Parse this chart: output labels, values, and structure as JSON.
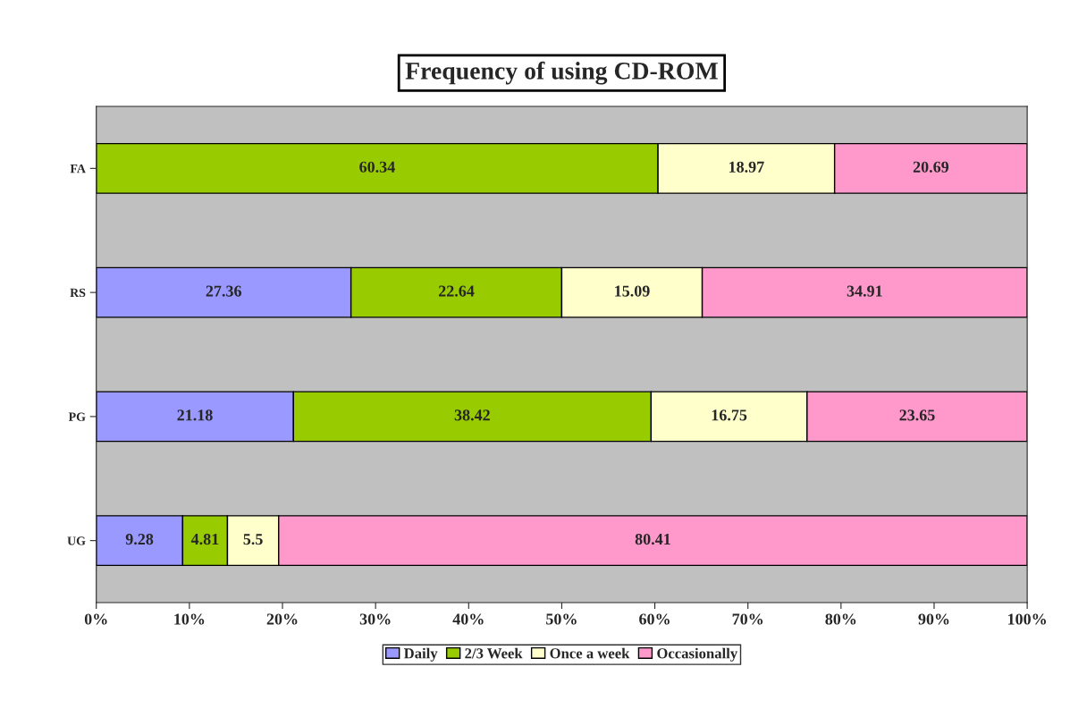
{
  "chart_data": {
    "type": "bar",
    "orientation": "horizontal",
    "stacked": true,
    "title": "Frequency of using CD-ROM",
    "categories": [
      "FA",
      "RS",
      "PG",
      "UG"
    ],
    "series": [
      {
        "name": "Daily",
        "color": "#9999ff",
        "values": [
          null,
          27.36,
          21.18,
          9.28
        ]
      },
      {
        "name": "2/3 Week",
        "color": "#99cc00",
        "values": [
          60.34,
          22.64,
          38.42,
          4.81
        ]
      },
      {
        "name": "Once a week",
        "color": "#ffffcc",
        "values": [
          18.97,
          15.09,
          16.75,
          5.5
        ]
      },
      {
        "name": "Occasionally",
        "color": "#ff99cc",
        "values": [
          20.69,
          34.91,
          23.65,
          80.41
        ]
      }
    ],
    "xlim": [
      0,
      100
    ],
    "xticks": [
      {
        "value": 0,
        "label": "0%"
      },
      {
        "value": 10,
        "label": "10%"
      },
      {
        "value": 20,
        "label": "20%"
      },
      {
        "value": 30,
        "label": "30%"
      },
      {
        "value": 40,
        "label": "40%"
      },
      {
        "value": 50,
        "label": "50%"
      },
      {
        "value": 60,
        "label": "60%"
      },
      {
        "value": 70,
        "label": "70%"
      },
      {
        "value": 80,
        "label": "80%"
      },
      {
        "value": 90,
        "label": "90%"
      },
      {
        "value": 100,
        "label": "100%"
      }
    ],
    "data_labels": true,
    "grid": false,
    "legend": "bottom"
  }
}
